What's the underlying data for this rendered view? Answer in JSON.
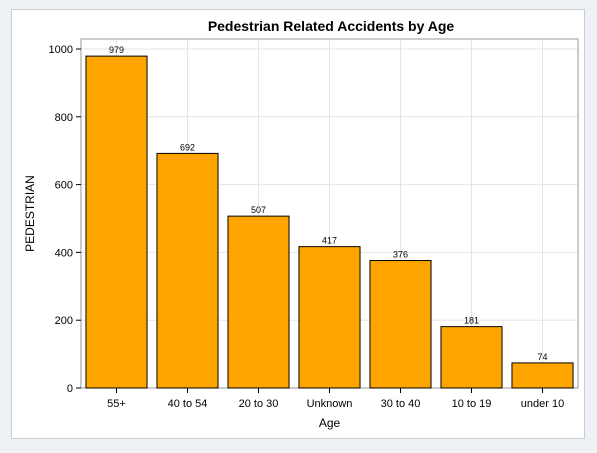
{
  "chart_data": {
    "type": "bar",
    "title": "Pedestrian Related Accidents by Age",
    "xlabel": "Age",
    "ylabel": "PEDESTRIAN",
    "categories": [
      "55+",
      "40 to 54",
      "20 to 30",
      "Unknown",
      "30 to 40",
      "10 to 19",
      "under 10"
    ],
    "values": [
      979,
      692,
      507,
      417,
      376,
      181,
      74
    ],
    "data_labels": [
      "979",
      "692",
      "507",
      "417",
      "376",
      "181",
      "74"
    ],
    "ylim": [
      0,
      1000
    ],
    "yticks": [
      0,
      200,
      400,
      600,
      800,
      1000
    ],
    "grid": true,
    "bar_color": "#FFA500",
    "bar_outline": "#000000",
    "grid_color": "#e6e6e6"
  }
}
